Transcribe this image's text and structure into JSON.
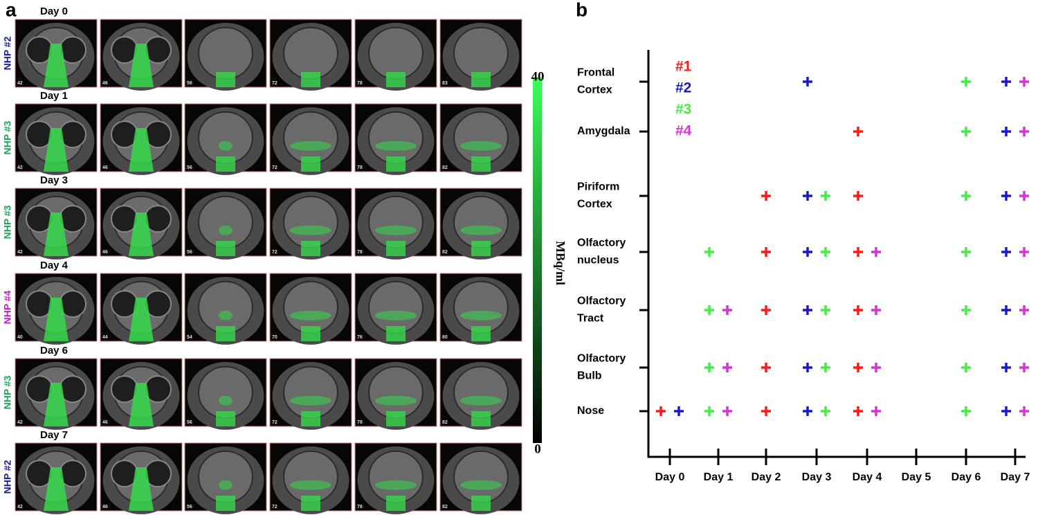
{
  "panel_a": {
    "label": "a",
    "rows": [
      {
        "day": "Day 0",
        "subject": "NHP #2",
        "color": "#1c1c8c",
        "slices": [
          "42",
          "46",
          "56",
          "72",
          "78",
          "83"
        ]
      },
      {
        "day": "Day 1",
        "subject": "NHP #3",
        "color": "#22a05a",
        "slices": [
          "42",
          "46",
          "56",
          "72",
          "78",
          "82"
        ]
      },
      {
        "day": "Day 3",
        "subject": "NHP #3",
        "color": "#22a05a",
        "slices": [
          "42",
          "46",
          "56",
          "72",
          "78",
          "82"
        ]
      },
      {
        "day": "Day 4",
        "subject": "NHP #4",
        "color": "#c020c0",
        "slices": [
          "40",
          "44",
          "54",
          "70",
          "76",
          "80"
        ]
      },
      {
        "day": "Day 6",
        "subject": "NHP #3",
        "color": "#22a05a",
        "slices": [
          "42",
          "46",
          "56",
          "72",
          "78",
          "82"
        ]
      },
      {
        "day": "Day 7",
        "subject": "NHP #2",
        "color": "#1c1c8c",
        "slices": [
          "42",
          "46",
          "56",
          "72",
          "78",
          "82"
        ]
      }
    ],
    "colorbar": {
      "title": "MBq/ml",
      "range": [
        0,
        40
      ],
      "ticks": [
        0,
        40
      ]
    }
  },
  "chart_data": {
    "type": "scatter",
    "label": "b",
    "categories": [
      "Day 0",
      "Day 1",
      "Day 2",
      "Day 3",
      "Day 4",
      "Day 5",
      "Day 6",
      "Day 7"
    ],
    "y_categories": [
      "Nose",
      "Olfactory Bulb",
      "Olfactory Tract",
      "Olfactory nucleus",
      "Piriform Cortex",
      "Amygdala",
      "Frontal Cortex"
    ],
    "series": [
      {
        "name": "#1",
        "color": "#ff1a1a",
        "x": [
          "Day 0",
          "Day 2",
          "Day 2",
          "Day 2",
          "Day 2",
          "Day 2",
          "Day 4",
          "Day 4",
          "Day 4",
          "Day 4",
          "Day 4",
          "Day 4"
        ],
        "y": [
          "Nose",
          "Piriform Cortex",
          "Olfactory nucleus",
          "Olfactory Tract",
          "Olfactory Bulb",
          "Nose",
          "Amygdala",
          "Piriform Cortex",
          "Olfactory nucleus",
          "Olfactory Tract",
          "Olfactory Bulb",
          "Nose"
        ]
      },
      {
        "name": "#2",
        "color": "#1a1acc",
        "x": [
          "Day 0",
          "Day 3",
          "Day 3",
          "Day 3",
          "Day 3",
          "Day 3",
          "Day 3",
          "Day 7",
          "Day 7",
          "Day 7",
          "Day 7",
          "Day 7",
          "Day 7",
          "Day 7"
        ],
        "y": [
          "Nose",
          "Frontal Cortex",
          "Piriform Cortex",
          "Olfactory nucleus",
          "Olfactory Tract",
          "Olfactory Bulb",
          "Nose",
          "Frontal Cortex",
          "Amygdala",
          "Piriform Cortex",
          "Olfactory nucleus",
          "Olfactory Tract",
          "Olfactory Bulb",
          "Nose"
        ]
      },
      {
        "name": "#3",
        "color": "#44ee44",
        "x": [
          "Day 1",
          "Day 1",
          "Day 1",
          "Day 1",
          "Day 3",
          "Day 3",
          "Day 3",
          "Day 3",
          "Day 3",
          "Day 6",
          "Day 6",
          "Day 6",
          "Day 6",
          "Day 6",
          "Day 6",
          "Day 6"
        ],
        "y": [
          "Olfactory nucleus",
          "Olfactory Tract",
          "Olfactory Bulb",
          "Nose",
          "Piriform Cortex",
          "Olfactory nucleus",
          "Olfactory Tract",
          "Olfactory Bulb",
          "Nose",
          "Frontal Cortex",
          "Amygdala",
          "Piriform Cortex",
          "Olfactory nucleus",
          "Olfactory Tract",
          "Olfactory Bulb",
          "Nose"
        ]
      },
      {
        "name": "#4",
        "color": "#d633d6",
        "x": [
          "Day 1",
          "Day 1",
          "Day 1",
          "Day 4",
          "Day 4",
          "Day 4",
          "Day 4",
          "Day 7",
          "Day 7",
          "Day 7",
          "Day 7",
          "Day 7",
          "Day 7",
          "Day 7"
        ],
        "y": [
          "Olfactory Tract",
          "Olfactory Bulb",
          "Nose",
          "Olfactory nucleus",
          "Olfactory Tract",
          "Olfactory Bulb",
          "Nose",
          "Frontal Cortex",
          "Amygdala",
          "Piriform Cortex",
          "Olfactory nucleus",
          "Olfactory Tract",
          "Olfactory Bulb",
          "Nose"
        ]
      }
    ]
  }
}
